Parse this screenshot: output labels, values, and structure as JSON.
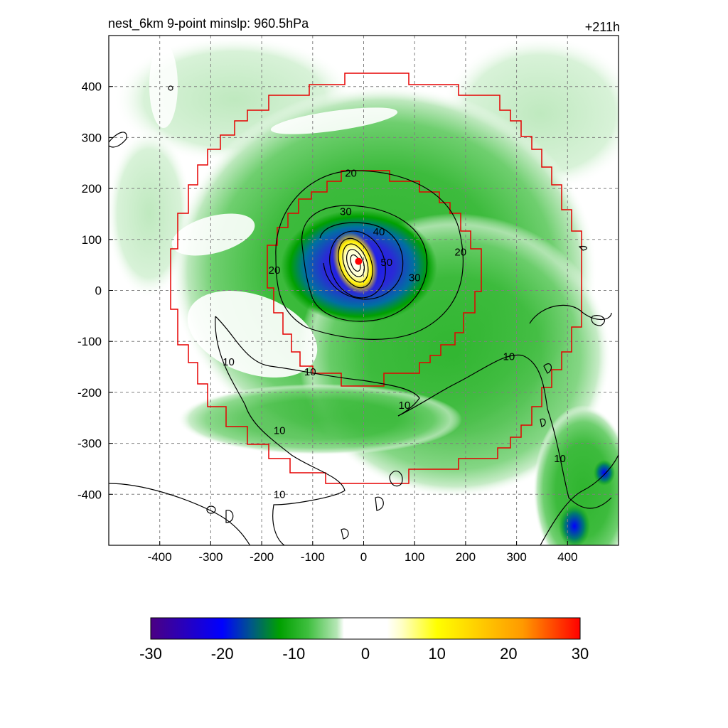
{
  "header": {
    "title_left": "nest_6km  9-point minslp: 960.5hPa",
    "title_right": "+211h"
  },
  "chart_data": {
    "type": "heatmap",
    "xlim": [
      -500,
      500
    ],
    "ylim": [
      -500,
      500
    ],
    "x_ticks": [
      -400,
      -300,
      -200,
      -100,
      0,
      100,
      200,
      300,
      400
    ],
    "y_ticks": [
      -400,
      -300,
      -200,
      -100,
      0,
      100,
      200,
      300,
      400
    ],
    "grid": true,
    "storm_center": [
      -10,
      57
    ],
    "field_features": [
      {
        "kind": "core-blue",
        "cx": 0,
        "cy": 60,
        "rx": 95,
        "ry": 70,
        "value": -22
      },
      {
        "kind": "core-yellow",
        "cx": -8,
        "cy": 50,
        "rx": 28,
        "ry": 45,
        "value": 12
      },
      {
        "kind": "outer-green-band",
        "cx": 40,
        "cy": 50,
        "rx": 380,
        "ry": 330,
        "value": -8
      },
      {
        "kind": "southeast-blue",
        "cx": 415,
        "cy": -470,
        "rx": 25,
        "ry": 30,
        "value": -20
      }
    ],
    "contour_levels": [
      10,
      20,
      30,
      40,
      50
    ],
    "contour_labels": [
      {
        "text": "20",
        "x": -25,
        "y": 230
      },
      {
        "text": "30",
        "x": -35,
        "y": 155
      },
      {
        "text": "40",
        "x": 30,
        "y": 115
      },
      {
        "text": "50",
        "x": 45,
        "y": 55
      },
      {
        "text": "30",
        "x": 100,
        "y": 25
      },
      {
        "text": "20",
        "x": 190,
        "y": 75
      },
      {
        "text": "20",
        "x": -175,
        "y": 40
      },
      {
        "text": "10",
        "x": -265,
        "y": -140
      },
      {
        "text": "10",
        "x": -105,
        "y": -160
      },
      {
        "text": "10",
        "x": 285,
        "y": -130
      },
      {
        "text": "10",
        "x": 80,
        "y": -225
      },
      {
        "text": "10",
        "x": -165,
        "y": -275
      },
      {
        "text": "10",
        "x": 385,
        "y": -330
      },
      {
        "text": "10",
        "x": -165,
        "y": -400
      }
    ],
    "colorbar": {
      "min": -30,
      "max": 30,
      "labels": [
        "-30",
        "-20",
        "-10",
        "0",
        "10",
        "20",
        "30"
      ],
      "stops": [
        {
          "v": -30,
          "c": "#4b0082"
        },
        {
          "v": -20,
          "c": "#0000ff"
        },
        {
          "v": -16,
          "c": "#00568a"
        },
        {
          "v": -12,
          "c": "#00a000"
        },
        {
          "v": -8,
          "c": "#3fbf3f"
        },
        {
          "v": -4,
          "c": "#b5e6b5"
        },
        {
          "v": -3,
          "c": "#ffffff"
        },
        {
          "v": 3,
          "c": "#ffffff"
        },
        {
          "v": 5,
          "c": "#ffffc8"
        },
        {
          "v": 10,
          "c": "#ffff00"
        },
        {
          "v": 16,
          "c": "#ffcc00"
        },
        {
          "v": 22,
          "c": "#ff9900"
        },
        {
          "v": 30,
          "c": "#ff0000"
        }
      ]
    },
    "colors": {
      "inner_nest_boundary": "#e60000",
      "outer_nest_boundary": "#e60000",
      "grid": "#808080",
      "contour": "#000000",
      "center_marker": "#ff0000"
    }
  }
}
